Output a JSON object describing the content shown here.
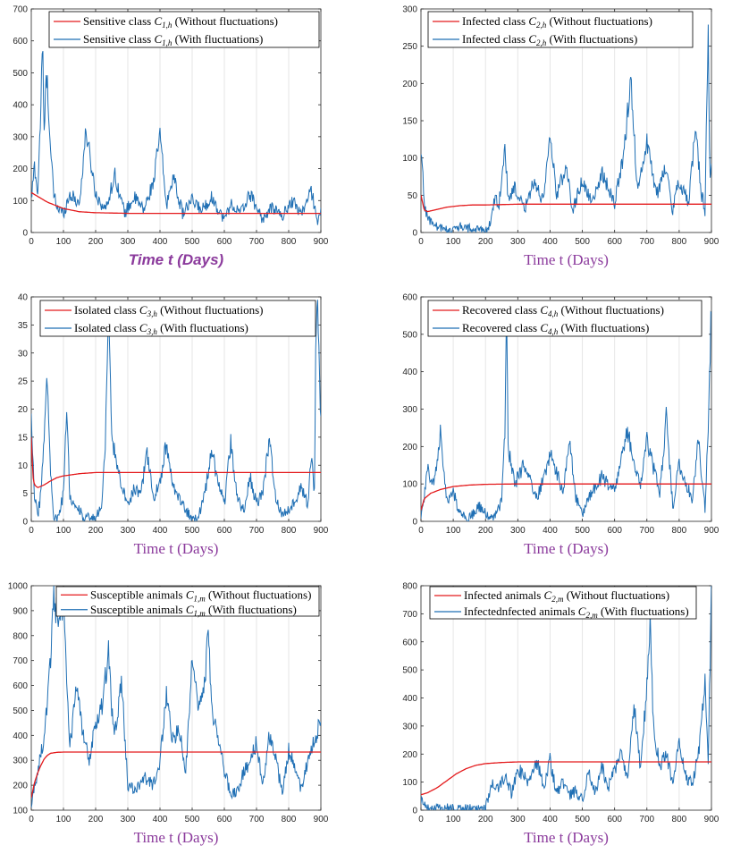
{
  "colors": {
    "deterministic": "#e41a1c",
    "stochastic": "#1f6fb4",
    "axis": "#262626",
    "xlabel": "#8b3a9c",
    "grid": "#e6e6e6"
  },
  "chart_data": [
    {
      "id": "p1",
      "type": "line",
      "xlabel": "Time t (Days)",
      "xlabel_style": "italic-sans",
      "xlim": [
        0,
        900
      ],
      "ylim": [
        0,
        700
      ],
      "xticks": [
        "0",
        "100",
        "200",
        "300",
        "400",
        "500",
        "600",
        "700",
        "800",
        "900"
      ],
      "yticks": [
        "0",
        "100",
        "200",
        "300",
        "400",
        "500",
        "600",
        "700"
      ],
      "legend": [
        "Sensitive class C1,h (Without fluctuations)",
        "Sensitive class C1,h (With fluctuations)"
      ],
      "legend_parts": [
        [
          "Sensitive class ",
          "C",
          "1,h",
          " (Without fluctuations)"
        ],
        [
          "Sensitive class ",
          "C",
          "1,h",
          " (With fluctuations)"
        ]
      ],
      "legend_position": "top-right",
      "series": [
        {
          "name": "Without fluctuations",
          "x": [
            0,
            50,
            100,
            150,
            200,
            300,
            400,
            900
          ],
          "y": [
            125,
            95,
            75,
            65,
            62,
            60,
            60,
            60
          ]
        },
        {
          "name": "With fluctuations",
          "x": [
            0,
            10,
            20,
            30,
            35,
            40,
            45,
            50,
            55,
            60,
            70,
            80,
            100,
            120,
            150,
            170,
            200,
            230,
            260,
            290,
            320,
            350,
            380,
            400,
            420,
            440,
            470,
            500,
            530,
            560,
            600,
            620,
            650,
            680,
            720,
            750,
            780,
            810,
            840,
            870,
            890,
            900
          ],
          "y": [
            100,
            210,
            120,
            400,
            600,
            300,
            450,
            500,
            350,
            250,
            120,
            80,
            60,
            120,
            90,
            320,
            120,
            70,
            180,
            60,
            110,
            70,
            160,
            310,
            80,
            180,
            60,
            100,
            70,
            110,
            40,
            90,
            60,
            120,
            40,
            80,
            50,
            100,
            60,
            130,
            40,
            60
          ]
        }
      ]
    },
    {
      "id": "p2",
      "type": "line",
      "xlabel": "Time t (Days)",
      "xlim": [
        0,
        900
      ],
      "ylim": [
        0,
        300
      ],
      "xticks": [
        "0",
        "100",
        "200",
        "300",
        "400",
        "500",
        "600",
        "700",
        "800",
        "900"
      ],
      "yticks": [
        "0",
        "50",
        "100",
        "150",
        "200",
        "250",
        "300"
      ],
      "legend": [
        "Infected class C2,h (Without fluctuations)",
        "Infected class C2,h (With fluctuations)"
      ],
      "legend_parts": [
        [
          "Infected class ",
          "C",
          "2,h",
          " (Without fluctuations)"
        ],
        [
          "Infected class ",
          "C",
          "2,h",
          " (With fluctuations)"
        ]
      ],
      "legend_position": "top-right",
      "series": [
        {
          "name": "Without fluctuations",
          "x": [
            0,
            10,
            20,
            40,
            80,
            120,
            160,
            200,
            300,
            900
          ],
          "y": [
            50,
            30,
            28,
            30,
            34,
            36,
            37,
            37,
            38,
            38
          ]
        },
        {
          "name": "With fluctuations",
          "x": [
            0,
            5,
            10,
            20,
            40,
            60,
            80,
            100,
            120,
            150,
            180,
            210,
            230,
            240,
            260,
            270,
            290,
            320,
            350,
            380,
            400,
            420,
            450,
            470,
            500,
            530,
            560,
            600,
            630,
            650,
            670,
            700,
            730,
            760,
            780,
            800,
            830,
            850,
            870,
            880,
            885,
            890,
            895,
            900
          ],
          "y": [
            100,
            90,
            40,
            20,
            10,
            5,
            4,
            3,
            8,
            5,
            3,
            5,
            50,
            30,
            120,
            40,
            60,
            30,
            70,
            40,
            130,
            50,
            90,
            30,
            70,
            40,
            80,
            40,
            110,
            210,
            60,
            120,
            50,
            90,
            30,
            70,
            40,
            140,
            50,
            30,
            170,
            280,
            60,
            90
          ]
        }
      ]
    },
    {
      "id": "p3",
      "type": "line",
      "xlabel": "Time t (Days)",
      "xlim": [
        0,
        900
      ],
      "ylim": [
        0,
        40
      ],
      "xticks": [
        "0",
        "100",
        "200",
        "300",
        "400",
        "500",
        "600",
        "700",
        "800",
        "900"
      ],
      "yticks": [
        "0",
        "5",
        "10",
        "15",
        "20",
        "25",
        "30",
        "35",
        "40"
      ],
      "legend": [
        "Isolated class C3,h (Without fluctuations)",
        "Isolated class C3,h (With fluctuations)"
      ],
      "legend_parts": [
        [
          "Isolated class ",
          "C",
          "3,h",
          " (Without fluctuations)"
        ],
        [
          "Isolated class ",
          "C",
          "3,h",
          " (With fluctuations)"
        ]
      ],
      "legend_position": "top-right",
      "series": [
        {
          "name": "Without fluctuations",
          "x": [
            0,
            5,
            10,
            20,
            40,
            60,
            80,
            100,
            150,
            200,
            300,
            900
          ],
          "y": [
            15,
            8,
            6.5,
            6,
            6.5,
            7.2,
            7.8,
            8.1,
            8.5,
            8.7,
            8.7,
            8.7
          ]
        },
        {
          "name": "With fluctuations",
          "x": [
            0,
            5,
            10,
            20,
            30,
            40,
            50,
            60,
            70,
            80,
            90,
            100,
            110,
            120,
            140,
            160,
            180,
            200,
            220,
            230,
            240,
            250,
            270,
            290,
            300,
            320,
            340,
            360,
            380,
            400,
            420,
            440,
            460,
            480,
            500,
            520,
            540,
            560,
            580,
            600,
            620,
            640,
            660,
            680,
            700,
            720,
            740,
            760,
            780,
            800,
            820,
            840,
            860,
            870,
            880,
            885,
            890,
            900
          ],
          "y": [
            19,
            12,
            5,
            1,
            5,
            16,
            26,
            8,
            1,
            0.5,
            2,
            5,
            21,
            4,
            3,
            1,
            0.5,
            0.5,
            3,
            14,
            37,
            15,
            9,
            5,
            3,
            6,
            5,
            12,
            4,
            7,
            14,
            6,
            4,
            2,
            0.5,
            1,
            5,
            13,
            7,
            3,
            14,
            4,
            2,
            8,
            3,
            5,
            15,
            4,
            1,
            2,
            4,
            6,
            3,
            12,
            5,
            36,
            40,
            17
          ]
        }
      ]
    },
    {
      "id": "p4",
      "type": "line",
      "xlabel": "Time t (Days)",
      "xlim": [
        0,
        900
      ],
      "ylim": [
        0,
        600
      ],
      "xticks": [
        "0",
        "100",
        "200",
        "300",
        "400",
        "500",
        "600",
        "700",
        "800",
        "900"
      ],
      "yticks": [
        "0",
        "100",
        "200",
        "300",
        "400",
        "500",
        "600"
      ],
      "legend": [
        "Recovered class C4,h (Without fluctuations)",
        "Recovered class C4,h (With fluctuations)"
      ],
      "legend_parts": [
        [
          "Recovered class ",
          "C",
          "4,h",
          " (Without fluctuations)"
        ],
        [
          "Recovered class ",
          "C",
          "4,h",
          " (With fluctuations)"
        ]
      ],
      "legend_position": "top-right",
      "series": [
        {
          "name": "Without fluctuations",
          "x": [
            0,
            10,
            30,
            60,
            100,
            150,
            200,
            300,
            900
          ],
          "y": [
            30,
            60,
            75,
            85,
            93,
            97,
            99,
            100,
            100
          ]
        },
        {
          "name": "With fluctuations",
          "x": [
            0,
            10,
            20,
            40,
            60,
            80,
            100,
            120,
            150,
            180,
            200,
            220,
            250,
            260,
            265,
            270,
            290,
            320,
            360,
            400,
            440,
            460,
            480,
            500,
            520,
            560,
            600,
            640,
            680,
            700,
            740,
            760,
            780,
            800,
            840,
            860,
            880,
            890,
            900
          ],
          "y": [
            10,
            60,
            140,
            100,
            240,
            50,
            80,
            20,
            10,
            40,
            20,
            5,
            50,
            240,
            560,
            200,
            100,
            150,
            60,
            180,
            80,
            220,
            60,
            20,
            60,
            120,
            80,
            240,
            90,
            220,
            70,
            280,
            40,
            150,
            60,
            220,
            30,
            240,
            600
          ]
        }
      ]
    },
    {
      "id": "p5",
      "type": "line",
      "xlabel": "Time t (Days)",
      "xlim": [
        0,
        900
      ],
      "ylim": [
        100,
        1000
      ],
      "xticks": [
        "0",
        "100",
        "200",
        "300",
        "400",
        "500",
        "600",
        "700",
        "800",
        "900"
      ],
      "yticks": [
        "100",
        "200",
        "300",
        "400",
        "500",
        "600",
        "700",
        "800",
        "900",
        "1000"
      ],
      "legend": [
        "Susceptible animals C1,m (Without fluctuations)",
        "Susceptible animals C1,m (With fluctuations)"
      ],
      "legend_parts": [
        [
          "Susceptible animals ",
          "C",
          "1,m",
          " (Without fluctuations)"
        ],
        [
          "Susceptible animals ",
          "C",
          "1,m",
          " (With fluctuations)"
        ]
      ],
      "legend_position": "top-right",
      "series": [
        {
          "name": "Without fluctuations",
          "x": [
            0,
            10,
            20,
            30,
            40,
            50,
            60,
            80,
            100,
            150,
            900
          ],
          "y": [
            150,
            210,
            250,
            280,
            305,
            320,
            328,
            332,
            333,
            333,
            333
          ]
        },
        {
          "name": "With fluctuations",
          "x": [
            0,
            10,
            20,
            40,
            60,
            70,
            80,
            100,
            110,
            120,
            140,
            160,
            180,
            200,
            220,
            240,
            250,
            260,
            280,
            300,
            320,
            350,
            380,
            400,
            420,
            440,
            460,
            480,
            500,
            520,
            540,
            550,
            560,
            580,
            600,
            620,
            640,
            660,
            680,
            700,
            720,
            740,
            760,
            780,
            800,
            820,
            840,
            860,
            880,
            900
          ],
          "y": [
            120,
            200,
            250,
            400,
            700,
            960,
            880,
            930,
            600,
            350,
            600,
            400,
            300,
            460,
            520,
            730,
            500,
            400,
            620,
            200,
            180,
            230,
            200,
            300,
            560,
            380,
            420,
            250,
            700,
            500,
            600,
            850,
            500,
            400,
            260,
            160,
            180,
            250,
            300,
            370,
            200,
            400,
            300,
            170,
            340,
            270,
            180,
            300,
            380,
            460
          ]
        }
      ]
    },
    {
      "id": "p6",
      "type": "line",
      "xlabel": "Time t (Days)",
      "xlim": [
        0,
        900
      ],
      "ylim": [
        0,
        800
      ],
      "xticks": [
        "0",
        "100",
        "200",
        "300",
        "400",
        "500",
        "600",
        "700",
        "800",
        "900"
      ],
      "yticks": [
        "0",
        "100",
        "200",
        "300",
        "400",
        "500",
        "600",
        "700",
        "800"
      ],
      "legend": [
        "Infected animals C2,m (Without fluctuations)",
        "Infectednfected animals C2,m (With fluctuations)"
      ],
      "legend_parts": [
        [
          "Infected animals ",
          "C",
          "2,m",
          " (Without fluctuations)"
        ],
        [
          "Infectednfected animals ",
          "C",
          "2,m",
          " (With fluctuations)"
        ]
      ],
      "legend_position": "top-right",
      "series": [
        {
          "name": "Without fluctuations",
          "x": [
            0,
            20,
            50,
            80,
            110,
            140,
            170,
            200,
            250,
            300,
            400,
            900
          ],
          "y": [
            55,
            62,
            80,
            105,
            130,
            148,
            160,
            166,
            170,
            172,
            172,
            172
          ]
        },
        {
          "name": "With fluctuations",
          "x": [
            0,
            10,
            20,
            40,
            60,
            80,
            100,
            120,
            150,
            180,
            200,
            220,
            240,
            260,
            280,
            300,
            330,
            360,
            380,
            400,
            420,
            440,
            460,
            480,
            500,
            520,
            540,
            560,
            580,
            600,
            620,
            640,
            660,
            680,
            700,
            710,
            720,
            740,
            760,
            780,
            800,
            820,
            840,
            860,
            880,
            890,
            900
          ],
          "y": [
            40,
            30,
            10,
            8,
            5,
            10,
            5,
            3,
            5,
            2,
            5,
            100,
            70,
            120,
            60,
            150,
            100,
            170,
            80,
            180,
            60,
            100,
            50,
            70,
            40,
            130,
            60,
            160,
            80,
            140,
            200,
            110,
            380,
            140,
            440,
            700,
            300,
            150,
            200,
            100,
            230,
            120,
            90,
            200,
            470,
            180,
            790
          ]
        }
      ]
    }
  ]
}
